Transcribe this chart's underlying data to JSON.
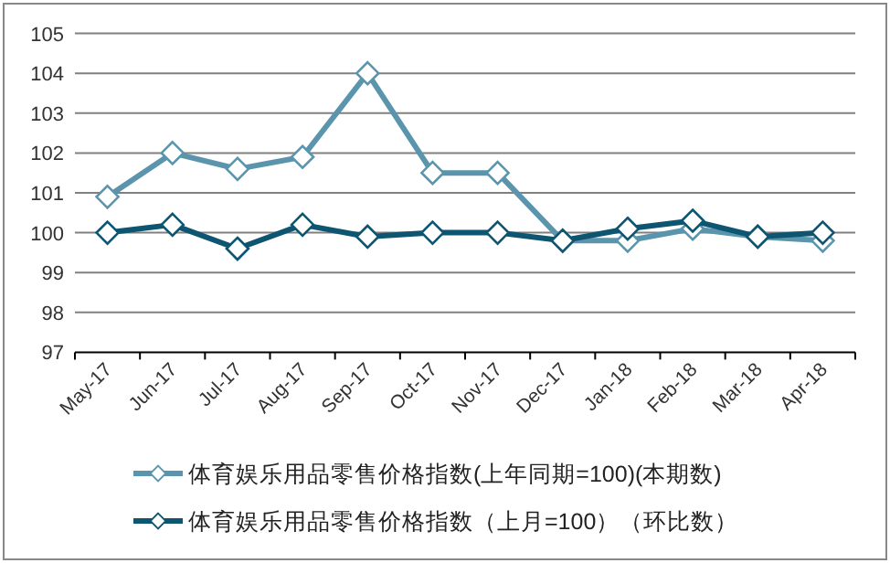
{
  "chart_data": {
    "type": "line",
    "categories": [
      "May-17",
      "Jun-17",
      "Jul-17",
      "Aug-17",
      "Sep-17",
      "Oct-17",
      "Nov-17",
      "Dec-17",
      "Jan-18",
      "Feb-18",
      "Mar-18",
      "Apr-18"
    ],
    "series": [
      {
        "name": "体育娱乐用品零售价格指数(上年同期=100)(本期数)",
        "color": "#5b95ad",
        "values": [
          100.9,
          102.0,
          101.6,
          101.9,
          104.0,
          101.5,
          101.5,
          99.8,
          99.8,
          100.1,
          99.9,
          99.8
        ]
      },
      {
        "name": "体育娱乐用品零售价格指数（上月=100）（环比数）",
        "color": "#0d5571",
        "values": [
          100.0,
          100.2,
          99.6,
          100.2,
          99.9,
          100.0,
          100.0,
          99.8,
          100.1,
          100.3,
          99.9,
          100.0
        ]
      }
    ],
    "ylim": [
      97,
      105
    ],
    "yticks": [
      97,
      98,
      99,
      100,
      101,
      102,
      103,
      104,
      105
    ],
    "grid": "y",
    "legend": "bottom",
    "marker": "diamond",
    "line_style": "solid"
  }
}
